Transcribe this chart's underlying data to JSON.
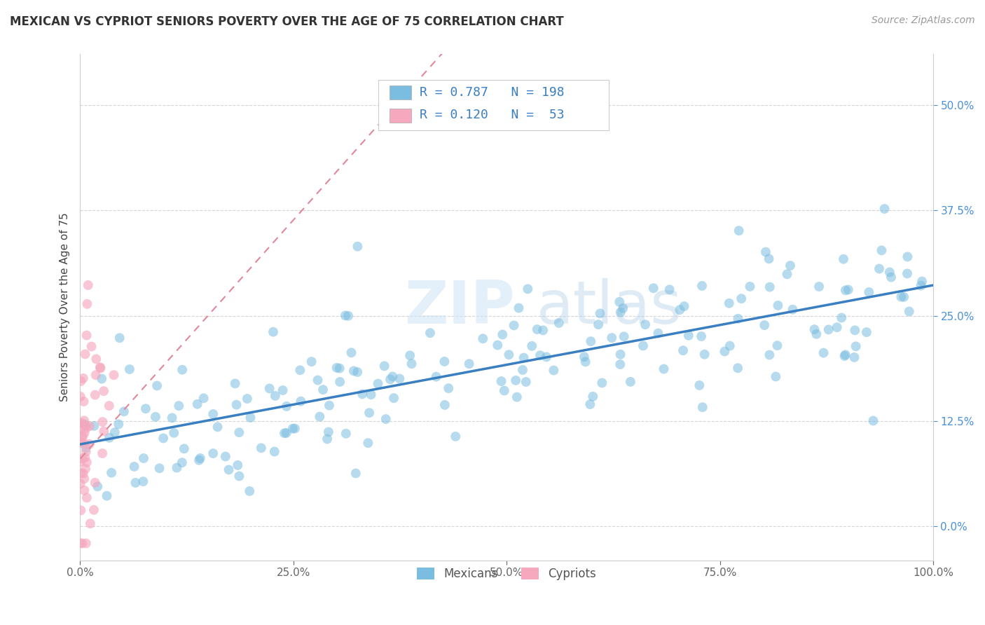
{
  "title": "MEXICAN VS CYPRIOT SENIORS POVERTY OVER THE AGE OF 75 CORRELATION CHART",
  "source": "Source: ZipAtlas.com",
  "ylabel": "Seniors Poverty Over the Age of 75",
  "xlim": [
    0.0,
    1.0
  ],
  "ylim": [
    -0.04,
    0.56
  ],
  "xticks": [
    0.0,
    0.25,
    0.5,
    0.75,
    1.0
  ],
  "xtick_labels": [
    "0.0%",
    "25.0%",
    "50.0%",
    "75.0%",
    "100.0%"
  ],
  "yticks": [
    0.0,
    0.125,
    0.25,
    0.375,
    0.5
  ],
  "ytick_labels": [
    "0.0%",
    "12.5%",
    "25.0%",
    "37.5%",
    "50.0%"
  ],
  "mexican_color": "#7bbde0",
  "cypriot_color": "#f5a8be",
  "mexican_line_color": "#3a7fc1",
  "cypriot_line_color": "#e08898",
  "R_mexican": 0.787,
  "N_mexican": 198,
  "R_cypriot": 0.12,
  "N_cypriot": 53,
  "watermark_zip": "ZIP",
  "watermark_atlas": "atlas",
  "background_color": "#ffffff",
  "grid_color": "#cccccc",
  "legend_label_mexican": "Mexicans",
  "legend_label_cypriot": "Cypriots"
}
